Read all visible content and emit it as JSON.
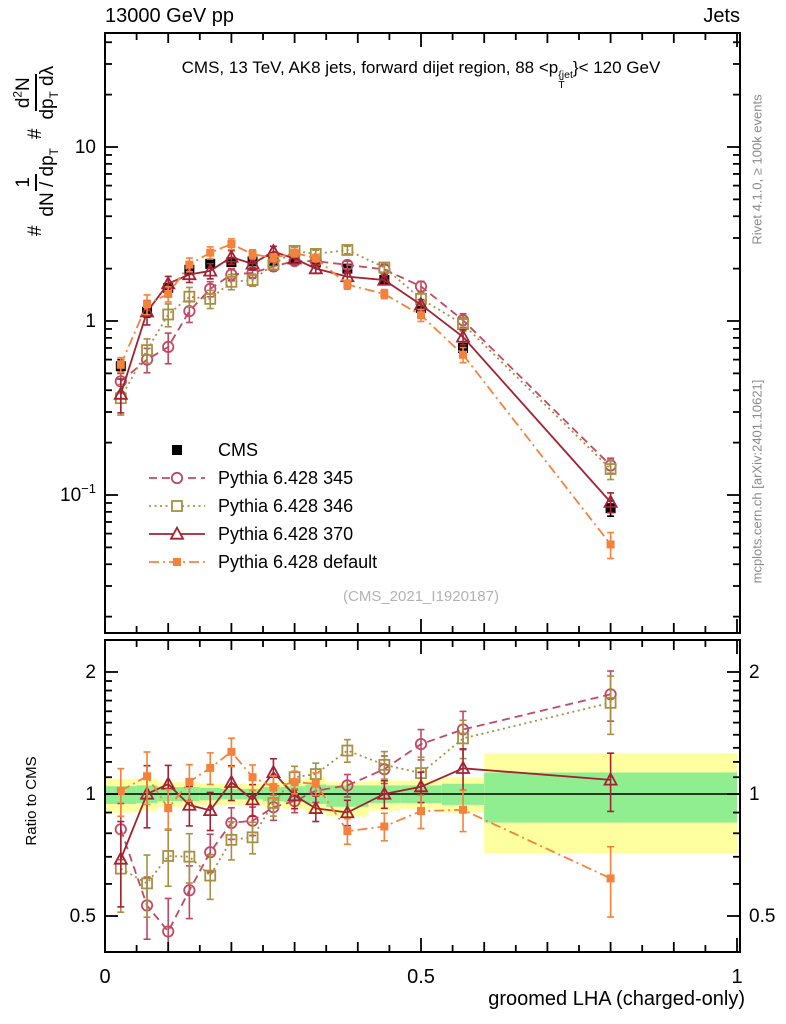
{
  "header": {
    "left": "13000 GeV pp",
    "right": "Jets"
  },
  "title_parts": [
    {
      "t": "CMS, 13 TeV, AK8 jets, forward dijet region, 88 <p"
    },
    {
      "stack": {
        "top": "{jet",
        "bottom": "T"
      }
    },
    {
      "t": "}< 120 GeV"
    }
  ],
  "main_ylabel_parts": [
    {
      "t": "#"
    },
    {
      "frac": {
        "num": [
          {
            "t": "1"
          }
        ],
        "den": [
          {
            "t": "dN / dp"
          },
          {
            "sub": "T"
          }
        ]
      }
    },
    {
      "t": "#"
    },
    {
      "frac": {
        "num": [
          {
            "t": "d"
          },
          {
            "sup": "2"
          },
          {
            "t": "N"
          }
        ],
        "den": [
          {
            "t": "dp"
          },
          {
            "sub": "T"
          },
          {
            "t": " dλ"
          }
        ]
      }
    }
  ],
  "labels": {
    "ratio_ylabel": "Ratio to CMS",
    "xlabel": "groomed LHA (charged-only)",
    "watermark": "(CMS_2021_I1920187)",
    "rivet": "Rivet 4.1.0, ≥ 100k events",
    "mcplots": "mcplots.cern.ch [arXiv:2401.10621]"
  },
  "axes": {
    "x_ticks": [
      {
        "v": 0,
        "label": "0"
      },
      {
        "v": 0.5,
        "label": "0.5"
      },
      {
        "v": 1,
        "label": "1"
      }
    ],
    "main_y_ticks": [
      {
        "v": 10,
        "parts": [
          {
            "t": "10"
          }
        ]
      },
      {
        "v": 1,
        "parts": [
          {
            "t": "1"
          }
        ]
      },
      {
        "v": 0.1,
        "parts": [
          {
            "t": "10"
          },
          {
            "sup": "−1"
          }
        ]
      }
    ],
    "ratio_y_ticks": [
      {
        "v": 2,
        "label": "2"
      },
      {
        "v": 1,
        "label": "1"
      },
      {
        "v": 0.5,
        "label": "0.5"
      }
    ]
  },
  "chart_data": {
    "type": "line",
    "title": "CMS, 13 TeV, AK8 jets, forward dijet region, 88 < pT^{jet} < 120 GeV",
    "xlabel": "groomed LHA (charged-only)",
    "ylabel": "# 1/(dN/dpT) # d2N/(dpT dlambda)",
    "ratio_ylabel": "Ratio to CMS",
    "yscale": "log",
    "ratio_yscale": "log",
    "xlim": [
      0,
      1.005
    ],
    "main_ylim": [
      0.017,
      45
    ],
    "ratio_ylim": [
      0.405,
      2.42
    ],
    "x": [
      0.025,
      0.0665,
      0.1,
      0.1335,
      0.1665,
      0.2,
      0.2335,
      0.2665,
      0.3,
      0.3335,
      0.3835,
      0.442,
      0.5,
      0.5665,
      0.8
    ],
    "bin_edges": [
      0,
      0.05,
      0.0835,
      0.117,
      0.15,
      0.1835,
      0.217,
      0.25,
      0.2835,
      0.317,
      0.35,
      0.417,
      0.467,
      0.533,
      0.6,
      1.0
    ],
    "series": [
      {
        "name": "CMS",
        "color": "#000000",
        "marker": "square-filled",
        "line": "none",
        "values": [
          0.55,
          1.13,
          1.55,
          1.97,
          2.13,
          2.18,
          2.2,
          2.22,
          2.3,
          2.17,
          2.0,
          1.72,
          1.19,
          0.7,
          0.084
        ],
        "rel_err": [
          0.09,
          0.07,
          0.05,
          0.05,
          0.04,
          0.04,
          0.04,
          0.04,
          0.04,
          0.04,
          0.04,
          0.05,
          0.05,
          0.06,
          0.1
        ]
      },
      {
        "name": "Pythia 6.428 345",
        "color": "#c14963",
        "marker": "circle-open",
        "line": "dashed",
        "values": [
          0.45,
          0.6,
          0.71,
          1.14,
          1.53,
          1.85,
          1.89,
          2.06,
          2.21,
          2.21,
          2.1,
          1.98,
          1.58,
          1.01,
          0.148
        ],
        "rel_err": [
          0.13,
          0.16,
          0.2,
          0.14,
          0.1,
          0.08,
          0.07,
          0.06,
          0.05,
          0.05,
          0.05,
          0.06,
          0.07,
          0.09,
          0.1
        ]
      },
      {
        "name": "Pythia 6.428 346",
        "color": "#a79044",
        "marker": "square-open",
        "line": "dotted",
        "values": [
          0.36,
          0.68,
          1.09,
          1.38,
          1.34,
          1.68,
          1.72,
          2.11,
          2.53,
          2.43,
          2.56,
          2.03,
          1.34,
          0.96,
          0.141
        ],
        "rel_err": [
          0.2,
          0.16,
          0.15,
          0.13,
          0.12,
          0.1,
          0.08,
          0.06,
          0.05,
          0.05,
          0.05,
          0.06,
          0.08,
          0.09,
          0.13
        ]
      },
      {
        "name": "Pythia 6.428 370",
        "color": "#a22333",
        "marker": "triangle-open",
        "line": "solid",
        "values": [
          0.38,
          1.13,
          1.64,
          1.85,
          1.94,
          2.33,
          2.13,
          2.51,
          2.28,
          2.0,
          1.8,
          1.72,
          1.24,
          0.81,
          0.091
        ],
        "rel_err": [
          0.22,
          0.16,
          0.1,
          0.1,
          0.1,
          0.09,
          0.08,
          0.07,
          0.06,
          0.06,
          0.06,
          0.06,
          0.07,
          0.1,
          0.13
        ]
      },
      {
        "name": "Pythia 6.428 default",
        "color": "#f5823c",
        "marker": "square-filled-small",
        "line": "dashdot",
        "values": [
          0.56,
          1.25,
          1.43,
          2.11,
          2.47,
          2.77,
          2.42,
          2.31,
          2.46,
          2.3,
          1.62,
          1.43,
          1.08,
          0.64,
          0.052
        ],
        "rel_err": [
          0.1,
          0.13,
          0.1,
          0.09,
          0.08,
          0.07,
          0.06,
          0.05,
          0.05,
          0.05,
          0.06,
          0.06,
          0.08,
          0.1,
          0.17
        ]
      }
    ],
    "ratio_reference": "CMS",
    "bands": {
      "yellow": "#feff9e",
      "green": "#90ee90",
      "per_bin": [
        [
          0.9,
          0.945,
          1.045,
          1.09
        ],
        [
          0.91,
          0.95,
          1.05,
          1.09
        ],
        [
          0.93,
          0.96,
          1.04,
          1.07
        ],
        [
          0.93,
          0.96,
          1.04,
          1.07
        ],
        [
          0.94,
          0.965,
          1.035,
          1.06
        ],
        [
          0.94,
          0.97,
          1.03,
          1.06
        ],
        [
          0.94,
          0.97,
          1.03,
          1.06
        ],
        [
          0.93,
          0.96,
          1.04,
          1.07
        ],
        [
          0.92,
          0.955,
          1.045,
          1.08
        ],
        [
          0.9,
          0.945,
          1.055,
          1.1
        ],
        [
          0.88,
          0.93,
          1.05,
          1.07
        ],
        [
          0.91,
          0.95,
          1.05,
          1.08
        ],
        [
          0.92,
          0.95,
          1.05,
          1.08
        ],
        [
          0.9,
          0.94,
          1.06,
          1.1
        ],
        [
          0.715,
          0.85,
          1.13,
          1.26
        ]
      ]
    }
  }
}
